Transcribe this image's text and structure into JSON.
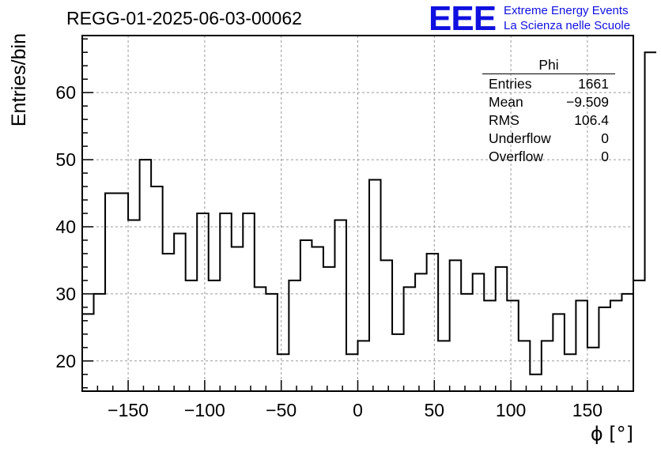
{
  "header": {
    "title": "REGG-01-2025-06-03-00062",
    "logo": "EEE",
    "logo_line1": "Extreme Energy Events",
    "logo_line2": "La Scienza nelle Scuole"
  },
  "stats": {
    "title": "Phi",
    "rows": [
      {
        "label": "Entries",
        "value": "1661"
      },
      {
        "label": "Mean",
        "value": "−9.509"
      },
      {
        "label": "RMS",
        "value": "106.4"
      },
      {
        "label": "Underflow",
        "value": "0"
      },
      {
        "label": "Overflow",
        "value": "0"
      }
    ]
  },
  "colors": {
    "line": "#000000",
    "grid": "#999999",
    "accent": "#1010e0"
  },
  "chart_data": {
    "type": "histogram",
    "title": "REGG-01-2025-06-03-00062",
    "xlabel": "ϕ [°]",
    "ylabel": "Entries/bin",
    "xlim": [
      -180,
      180
    ],
    "ylim": [
      15.5,
      68.5
    ],
    "grid": true,
    "bin_width": 7.5,
    "x_ticks": [
      -150,
      -100,
      -50,
      0,
      50,
      100,
      150
    ],
    "x_tick_labels": [
      "−150",
      "−100",
      "−50",
      "0",
      "50",
      "100",
      "150"
    ],
    "y_ticks": [
      20,
      30,
      40,
      50,
      60
    ],
    "y_tick_labels": [
      "20",
      "30",
      "40",
      "50",
      "60"
    ],
    "values": [
      27,
      30,
      45,
      45,
      41,
      50,
      46,
      36,
      39,
      32,
      42,
      32,
      42,
      37,
      42,
      31,
      30,
      21,
      32,
      38,
      37,
      34,
      41,
      21,
      23,
      47,
      35,
      24,
      31,
      33,
      36,
      23,
      35,
      30,
      33,
      29,
      34,
      29,
      23,
      18,
      23,
      27,
      21,
      29,
      22,
      28,
      29,
      30,
      32,
      66
    ]
  }
}
